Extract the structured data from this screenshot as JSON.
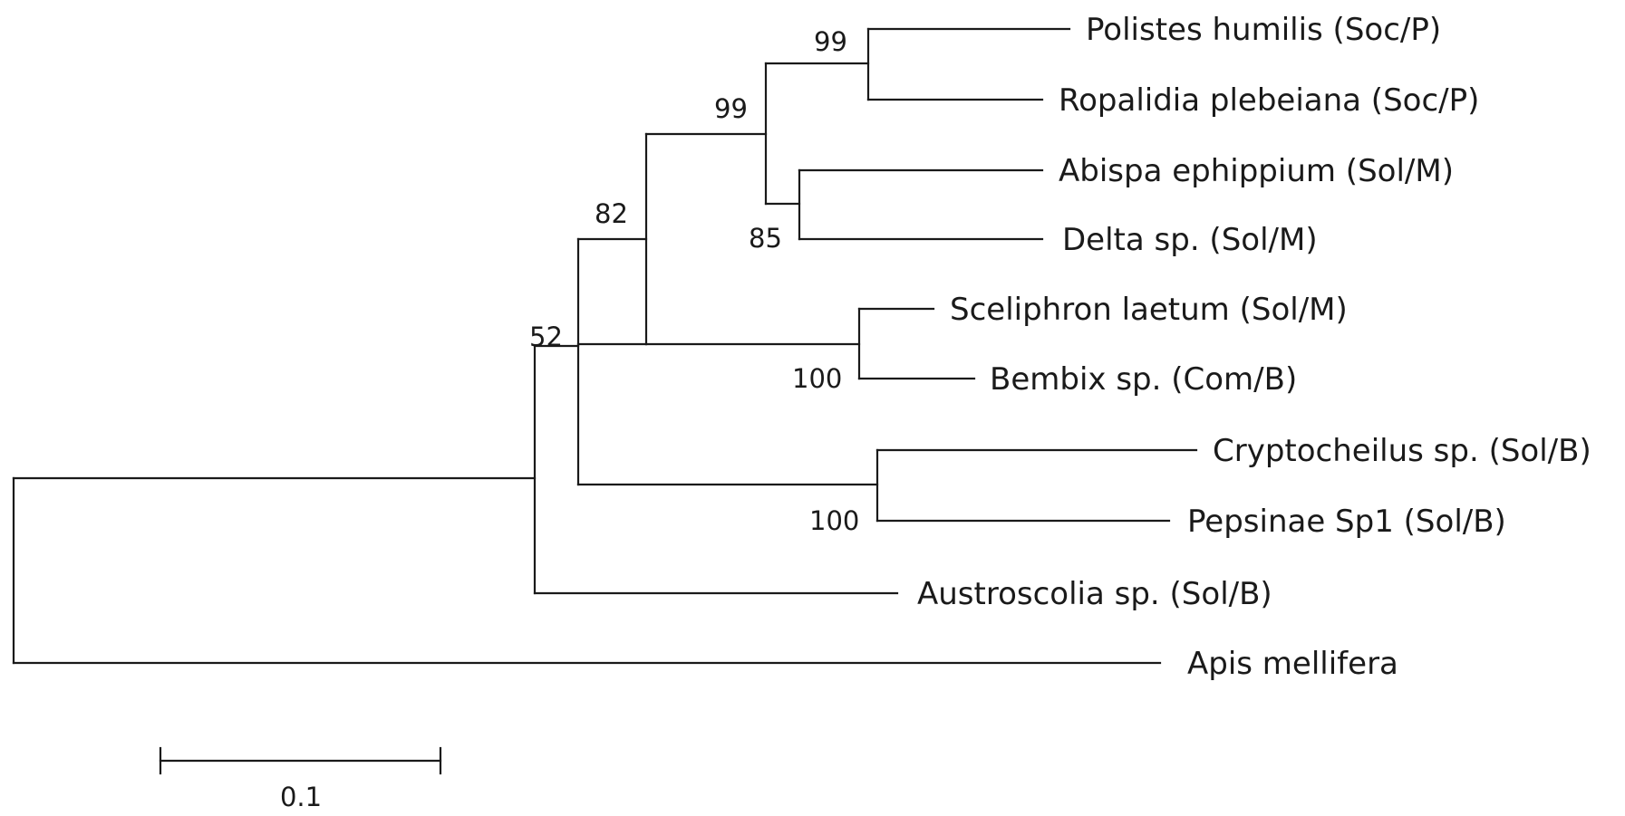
{
  "tree": {
    "root_children": [
      "n52",
      "apis"
    ],
    "nodes": {
      "n52": {
        "support": "52",
        "children": [
          "n82",
          "austro"
        ]
      },
      "n82": {
        "support": "82",
        "children": [
          "n99b",
          "nC"
        ]
      },
      "n99b": {
        "support": "99",
        "children": [
          "n99a",
          "n85"
        ]
      },
      "n99a": {
        "support": "99",
        "children": [
          "polistes",
          "ropalidia"
        ]
      },
      "n85": {
        "support": "85",
        "children": [
          "abispa",
          "delta"
        ]
      },
      "nC": {
        "support": "100",
        "children": [
          "sceliphron",
          "bembix"
        ]
      },
      "nB": {
        "support": "100",
        "children": [
          "crypto",
          "pepsinae"
        ]
      }
    },
    "taxa": {
      "polistes": "Polistes humilis (Soc/P)",
      "ropalidia": "Ropalidia plebeiana (Soc/P)",
      "abispa": "Abispa ephippium (Sol/M)",
      "delta": "Delta sp. (Sol/M)",
      "sceliphron": "Sceliphron laetum (Sol/M)",
      "bembix": "Bembix sp. (Com/B)",
      "crypto": "Cryptocheilus sp. (Sol/B)",
      "pepsinae": "Pepsinae Sp1 (Sol/B)",
      "austro": "Austroscolia sp. (Sol/B)",
      "apis": "Apis mellifera"
    }
  },
  "scale_bar": {
    "value": 0.1,
    "label": "0.1"
  }
}
